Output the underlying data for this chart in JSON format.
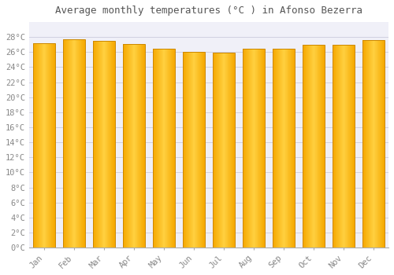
{
  "title": "Average monthly temperatures (°C ) in Afonso Bezerra",
  "months": [
    "Jan",
    "Feb",
    "Mar",
    "Apr",
    "May",
    "Jun",
    "Jul",
    "Aug",
    "Sep",
    "Oct",
    "Nov",
    "Dec"
  ],
  "temperatures": [
    27.2,
    27.7,
    27.5,
    27.1,
    26.4,
    26.0,
    25.9,
    26.4,
    26.4,
    27.0,
    27.0,
    27.6
  ],
  "ylim": [
    0,
    30
  ],
  "yticks": [
    0,
    2,
    4,
    6,
    8,
    10,
    12,
    14,
    16,
    18,
    20,
    22,
    24,
    26,
    28
  ],
  "bar_color_left": "#F5A800",
  "bar_color_center": "#FFD040",
  "bar_color_right": "#F5A800",
  "bar_edge_color": "#CC8800",
  "background_color": "#FFFFFF",
  "plot_bg_color": "#F0F0F8",
  "grid_color": "#CCCCDD",
  "title_fontsize": 9,
  "tick_fontsize": 7.5,
  "font_family": "monospace"
}
